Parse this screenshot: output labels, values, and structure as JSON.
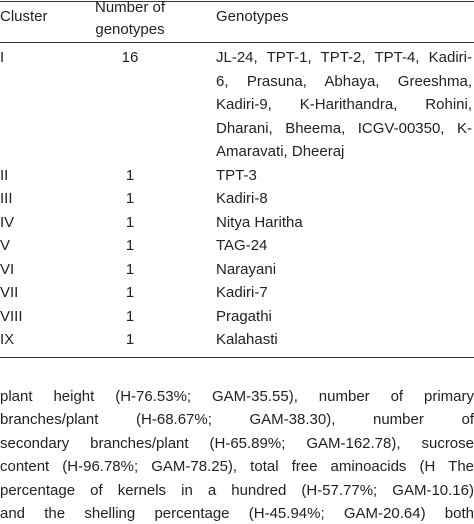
{
  "table": {
    "header": [
      "Cluster",
      "Number of genotypes",
      "Genotypes"
    ],
    "rows": [
      [
        "I",
        "16",
        [
          "JL-24, TPT-1, TPT-2, TPT-4, Kadiri-",
          "6, Prasuna, Abhaya, Greeshma,",
          "Kadiri-9, K-Harithandra, Rohini,",
          "Dharani, Bheema, ICGV-00350, K-",
          "Amaravati, Dheeraj"
        ]
      ],
      [
        "II",
        "1",
        [
          "TPT-3"
        ]
      ],
      [
        "III",
        "1",
        [
          "Kadiri-8"
        ]
      ],
      [
        "IV",
        "1",
        [
          "Nitya Haritha"
        ]
      ],
      [
        "V",
        "1",
        [
          "TAG-24"
        ]
      ],
      [
        "VI",
        "1",
        [
          "Narayani"
        ]
      ],
      [
        "VII",
        "1",
        [
          "Kadiri-7"
        ]
      ],
      [
        "VIII",
        "1",
        [
          "Pragathi"
        ]
      ],
      [
        "IX",
        "1",
        [
          "Kalahasti"
        ]
      ]
    ]
  },
  "paragraph": [
    "plant height (H-76.53%; GAM-35.55), number of primary",
    "branches/plant (H-68.67%; GAM-38.30), number of",
    "secondary branches/plant (H-65.89%; GAM-162.78), sucrose",
    "content (H-96.78%; GAM-78.25), total free aminoacids (H The",
    "percentage of kernels in a hundred (H-57.77%; GAM-10.16)",
    "and the shelling percentage (H-45.94%; GAM-20.64) both"
  ]
}
